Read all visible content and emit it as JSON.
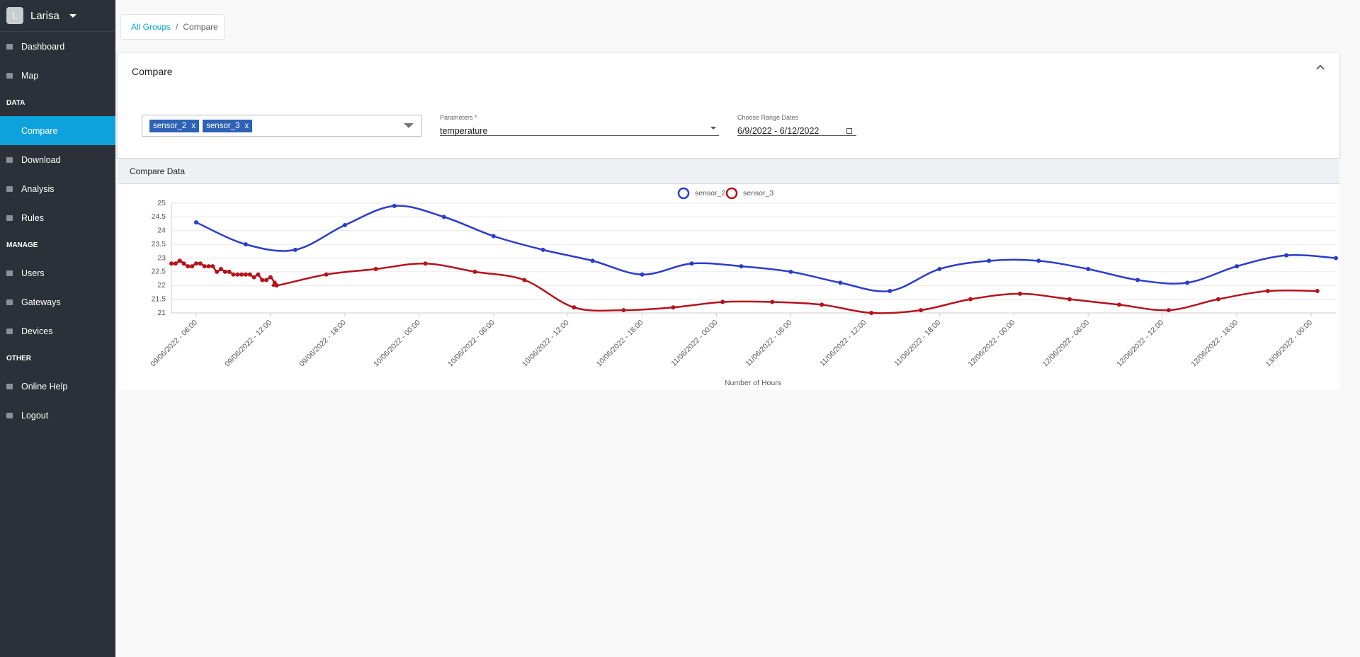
{
  "sidebar": {
    "avatar": "L",
    "user": "Larisa",
    "nav": [
      {
        "items": [
          "Dashboard",
          "Map"
        ]
      },
      {
        "heading": "DATA",
        "items": [
          "Compare",
          "Download",
          "Analysis",
          "Rules"
        ]
      },
      {
        "heading": "MANAGE",
        "items": [
          "Users",
          "Gateways",
          "Devices"
        ]
      },
      {
        "heading": "OTHER",
        "items": [
          "Online Help",
          "Logout"
        ]
      }
    ]
  },
  "breadcrumb": {
    "link": "All Groups",
    "separator": "/",
    "current": "Compare"
  },
  "card": {
    "title": "Compare",
    "chips": [
      {
        "label": "sensor_2",
        "remove": "x"
      },
      {
        "label": "sensor_3",
        "remove": "x"
      }
    ],
    "parameters": {
      "label": "Parameters *",
      "value": "temperature"
    },
    "dates": {
      "label": "Choose Range Dates",
      "value": "6/9/2022 - 6/12/2022"
    }
  },
  "section_title": "Compare Data",
  "chart_data": {
    "type": "line",
    "x_label": "Number of Hours",
    "grid": true,
    "xlim": [
      "09/06/2022 - 04:00",
      "13/06/2022 - 02:00"
    ],
    "xticks": [
      "09/06/2022 - 06:00",
      "09/06/2022 - 12:00",
      "09/06/2022 - 18:00",
      "10/06/2022 - 00:00",
      "10/06/2022 - 06:00",
      "10/06/2022 - 12:00",
      "10/06/2022 - 18:00",
      "11/06/2022 - 00:00",
      "11/06/2022 - 06:00",
      "11/06/2022 - 12:00",
      "11/06/2022 - 18:00",
      "12/06/2022 - 00:00",
      "12/06/2022 - 06:00",
      "12/06/2022 - 12:00",
      "12/06/2022 - 18:00",
      "13/06/2022 - 00:00"
    ],
    "ylim": [
      21,
      25
    ],
    "yticks": [
      21,
      21.5,
      22,
      22.5,
      23,
      23.5,
      24,
      24.5,
      25
    ],
    "series": [
      {
        "name": "sensor_2",
        "color": "#2b3ccc",
        "x": [
          "09/06/2022 - 06:00",
          "09/06/2022 - 10:00",
          "09/06/2022 - 14:00",
          "09/06/2022 - 18:00",
          "09/06/2022 - 22:00",
          "10/06/2022 - 02:00",
          "10/06/2022 - 06:00",
          "10/06/2022 - 10:00",
          "10/06/2022 - 14:00",
          "10/06/2022 - 18:00",
          "10/06/2022 - 22:00",
          "11/06/2022 - 02:00",
          "11/06/2022 - 06:00",
          "11/06/2022 - 10:00",
          "11/06/2022 - 14:00",
          "11/06/2022 - 18:00",
          "11/06/2022 - 22:00",
          "12/06/2022 - 02:00",
          "12/06/2022 - 06:00",
          "12/06/2022 - 10:00",
          "12/06/2022 - 14:00",
          "12/06/2022 - 18:00",
          "12/06/2022 - 22:00",
          "13/06/2022 - 02:00"
        ],
        "values": [
          24.3,
          23.5,
          23.3,
          24.2,
          24.9,
          24.5,
          23.8,
          23.3,
          22.9,
          22.4,
          22.8,
          22.7,
          22.5,
          22.1,
          21.8,
          22.6,
          22.9,
          22.9,
          22.6,
          22.2,
          22.1,
          22.7,
          23.1,
          23.0
        ]
      },
      {
        "name": "sensor_3",
        "color": "#b5121b",
        "x": [
          "09/06/2022 - 04:00",
          "09/06/2022 - 04:20",
          "09/06/2022 - 04:40",
          "09/06/2022 - 05:00",
          "09/06/2022 - 05:20",
          "09/06/2022 - 05:40",
          "09/06/2022 - 06:00",
          "09/06/2022 - 06:20",
          "09/06/2022 - 06:40",
          "09/06/2022 - 07:00",
          "09/06/2022 - 07:20",
          "09/06/2022 - 07:40",
          "09/06/2022 - 08:00",
          "09/06/2022 - 08:20",
          "09/06/2022 - 08:40",
          "09/06/2022 - 09:00",
          "09/06/2022 - 09:20",
          "09/06/2022 - 09:40",
          "09/06/2022 - 10:00",
          "09/06/2022 - 10:20",
          "09/06/2022 - 10:40",
          "09/06/2022 - 11:00",
          "09/06/2022 - 11:20",
          "09/06/2022 - 11:40",
          "09/06/2022 - 12:00",
          "09/06/2022 - 12:20",
          "09/06/2022 - 12:30",
          "09/06/2022 - 16:30",
          "09/06/2022 - 20:30",
          "10/06/2022 - 00:30",
          "10/06/2022 - 04:30",
          "10/06/2022 - 08:30",
          "10/06/2022 - 12:30",
          "10/06/2022 - 16:30",
          "10/06/2022 - 20:30",
          "11/06/2022 - 00:30",
          "11/06/2022 - 04:30",
          "11/06/2022 - 08:30",
          "11/06/2022 - 12:30",
          "11/06/2022 - 16:30",
          "11/06/2022 - 20:30",
          "12/06/2022 - 00:30",
          "12/06/2022 - 04:30",
          "12/06/2022 - 08:30",
          "12/06/2022 - 12:30",
          "12/06/2022 - 16:30",
          "12/06/2022 - 20:30",
          "13/06/2022 - 00:30"
        ],
        "values": [
          22.8,
          22.8,
          22.9,
          22.8,
          22.7,
          22.7,
          22.8,
          22.8,
          22.7,
          22.7,
          22.7,
          22.5,
          22.6,
          22.5,
          22.5,
          22.4,
          22.4,
          22.4,
          22.4,
          22.4,
          22.3,
          22.4,
          22.2,
          22.2,
          22.3,
          22.1,
          22.0,
          22.4,
          22.6,
          22.8,
          22.5,
          22.2,
          21.2,
          21.1,
          21.2,
          21.4,
          21.4,
          21.3,
          21.0,
          21.1,
          21.5,
          21.7,
          21.5,
          21.3,
          21.1,
          21.5,
          21.8,
          21.8
        ]
      }
    ]
  }
}
